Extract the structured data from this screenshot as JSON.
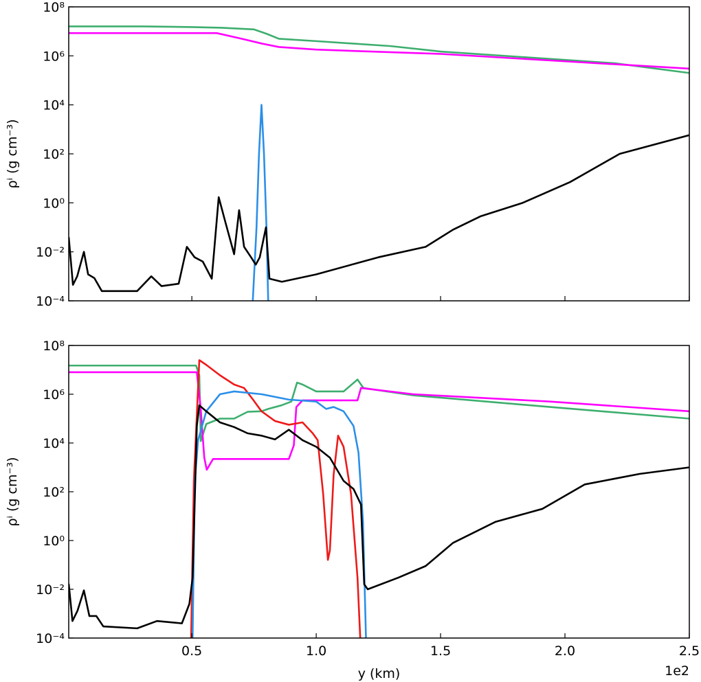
{
  "chart_data": [
    {
      "type": "line",
      "log_y": true,
      "show_xticklabels": false,
      "ylabel": "ρⁱ (g cm⁻³)",
      "xlim": [
        0.005,
        2.5
      ],
      "xticks": [
        0.5,
        1,
        1.5,
        2,
        2.5
      ],
      "ylim": [
        0.0001,
        100000000
      ],
      "yticks": [
        {
          "value": 0.0001,
          "label": "10⁻⁴"
        },
        {
          "value": 0.01,
          "label": "10⁻²"
        },
        {
          "value": 1,
          "label": "10⁰"
        },
        {
          "value": 100,
          "label": "10²"
        },
        {
          "value": 10000,
          "label": "10⁴"
        },
        {
          "value": 1000000,
          "label": "10⁶"
        },
        {
          "value": 100000000,
          "label": "10⁸"
        }
      ],
      "series": [
        {
          "color": "#3dae6e",
          "x": [
            0.005,
            0.3,
            0.5,
            0.62,
            0.75,
            0.8,
            0.85,
            1.0,
            1.3,
            1.5,
            1.9,
            2.2,
            2.5
          ],
          "values": [
            16000000,
            16000000,
            15000000,
            14000000,
            12000000,
            8000000,
            5000000,
            4000000,
            2500000,
            1500000,
            800000,
            500000,
            200000
          ]
        },
        {
          "color": "#ff00ff",
          "x": [
            0.005,
            0.6,
            0.7,
            0.78,
            0.85,
            1.0,
            1.5,
            2.0,
            2.5
          ],
          "values": [
            8500000,
            8500000,
            5000000,
            3200000,
            2300000,
            1800000,
            1200000,
            600000,
            300000
          ]
        },
        {
          "color": "#2b8fe8",
          "x": [
            0.745,
            0.76,
            0.77,
            0.78,
            0.79,
            0.8,
            0.807
          ],
          "values": [
            0.0001,
            0.1,
            100,
            10000,
            100,
            0.1,
            0.0001
          ]
        },
        {
          "color": "#000000",
          "x": [
            0.005,
            0.022,
            0.039,
            0.066,
            0.083,
            0.108,
            0.138,
            0.28,
            0.337,
            0.378,
            0.447,
            0.48,
            0.511,
            0.544,
            0.58,
            0.608,
            0.635,
            0.67,
            0.69,
            0.71,
            0.738,
            0.757,
            0.773,
            0.798,
            0.812,
            0.862,
            1.0,
            1.25,
            1.44,
            1.55,
            1.66,
            1.83,
            2.02,
            2.22,
            2.5
          ],
          "values": [
            0.04,
            0.00045,
            0.001,
            0.01,
            0.0012,
            0.00085,
            0.00025,
            0.00025,
            0.001,
            0.0004,
            0.0005,
            0.016,
            0.006,
            0.004,
            0.0008,
            1.7,
            0.16,
            0.008,
            0.5,
            0.016,
            0.006,
            0.003,
            0.006,
            0.1,
            0.0008,
            0.0006,
            0.0012,
            0.006,
            0.016,
            0.08,
            0.28,
            1,
            7,
            100,
            580
          ]
        }
      ]
    },
    {
      "type": "line",
      "log_y": true,
      "show_xticklabels": true,
      "xlabel": "y (km)",
      "x_offset_label": "1e2",
      "ylabel": "ρⁱ (g cm⁻³)",
      "xlim": [
        0.005,
        2.5
      ],
      "xticks": [
        0.5,
        {
          "value": 1,
          "label": "1.0"
        },
        1.5,
        {
          "value": 2,
          "label": "2.0"
        },
        2.5
      ],
      "ylim": [
        0.0001,
        100000000
      ],
      "yticks": [
        {
          "value": 0.0001,
          "label": "10⁻⁴"
        },
        {
          "value": 0.01,
          "label": "10⁻²"
        },
        {
          "value": 1,
          "label": "10⁰"
        },
        {
          "value": 100,
          "label": "10²"
        },
        {
          "value": 10000,
          "label": "10⁴"
        },
        {
          "value": 1000000,
          "label": "10⁶"
        },
        {
          "value": 100000000,
          "label": "10⁸"
        }
      ],
      "series": [
        {
          "color": "#3dae6e",
          "x": [
            0.005,
            0.517,
            0.53,
            0.536,
            0.558,
            0.613,
            0.67,
            0.724,
            0.78,
            0.807,
            0.86,
            0.9,
            0.923,
            0.945,
            1.0,
            1.11,
            1.166,
            1.19,
            1.39,
            1.94,
            2.5
          ],
          "values": [
            15000000,
            15000000,
            6000000,
            12000,
            60000,
            100000,
            100000,
            190000,
            200000,
            250000,
            350000,
            500000,
            3000000,
            2500000,
            1300000,
            1300000,
            4000000,
            1800000,
            900000,
            300000,
            100000
          ]
        },
        {
          "color": "#ff00ff",
          "x": [
            0.005,
            0.52,
            0.535,
            0.55,
            0.56,
            0.585,
            0.89,
            0.91,
            0.92,
            0.945,
            1.166,
            1.18,
            1.39,
            1.94,
            2.5
          ],
          "values": [
            8000000,
            8000000,
            300000,
            2500,
            800,
            2200,
            2200,
            8000,
            300000,
            560000,
            560000,
            1800000,
            1000000,
            500000,
            200000
          ]
        },
        {
          "color": "#ee1a1a",
          "x": [
            0.497,
            0.508,
            0.53,
            0.558,
            0.613,
            0.67,
            0.71,
            0.746,
            0.78,
            0.834,
            0.89,
            0.945,
            0.986,
            1.006,
            1.028,
            1.047,
            1.055,
            1.07,
            1.088,
            1.11,
            1.14,
            1.166,
            1.177
          ],
          "values": [
            0.0001,
            280,
            25000000,
            16000000,
            6000000,
            2500000,
            1800000,
            600000,
            200000,
            80000,
            56000,
            70000,
            25000,
            13000,
            80,
            0.16,
            0.4,
            500,
            20000,
            7000,
            80,
            0.03,
            0.0001
          ]
        },
        {
          "color": "#2b8fe8",
          "x": [
            0.503,
            0.512,
            0.525,
            0.558,
            0.613,
            0.67,
            0.78,
            0.89,
            1.0,
            1.04,
            1.07,
            1.11,
            1.15,
            1.17,
            1.188,
            1.2
          ],
          "values": [
            0.0001,
            280,
            13000,
            200000,
            1000000,
            1300000,
            1000000,
            600000,
            500000,
            250000,
            300000,
            200000,
            50000,
            4000,
            6,
            0.0001
          ]
        },
        {
          "color": "#000000",
          "x": [
            0.005,
            0.02,
            0.04,
            0.066,
            0.088,
            0.116,
            0.144,
            0.28,
            0.36,
            0.46,
            0.49,
            0.503,
            0.52,
            0.53,
            0.558,
            0.613,
            0.67,
            0.724,
            0.78,
            0.834,
            0.89,
            0.945,
            1.0,
            1.055,
            1.11,
            1.15,
            1.18,
            1.193,
            1.207,
            1.33,
            1.44,
            1.55,
            1.72,
            1.91,
            2.08,
            2.3,
            2.5
          ],
          "values": [
            0.017,
            0.0005,
            0.0013,
            0.009,
            0.0008,
            0.0008,
            0.0003,
            0.00025,
            0.0005,
            0.0004,
            0.0025,
            0.03,
            50000,
            350000,
            200000,
            70000,
            45000,
            25000,
            20000,
            14000,
            35000,
            13000,
            7000,
            2500,
            280,
            130,
            30,
            0.016,
            0.01,
            0.03,
            0.09,
            0.8,
            5.8,
            20,
            200,
            540,
            1000
          ]
        }
      ]
    }
  ]
}
